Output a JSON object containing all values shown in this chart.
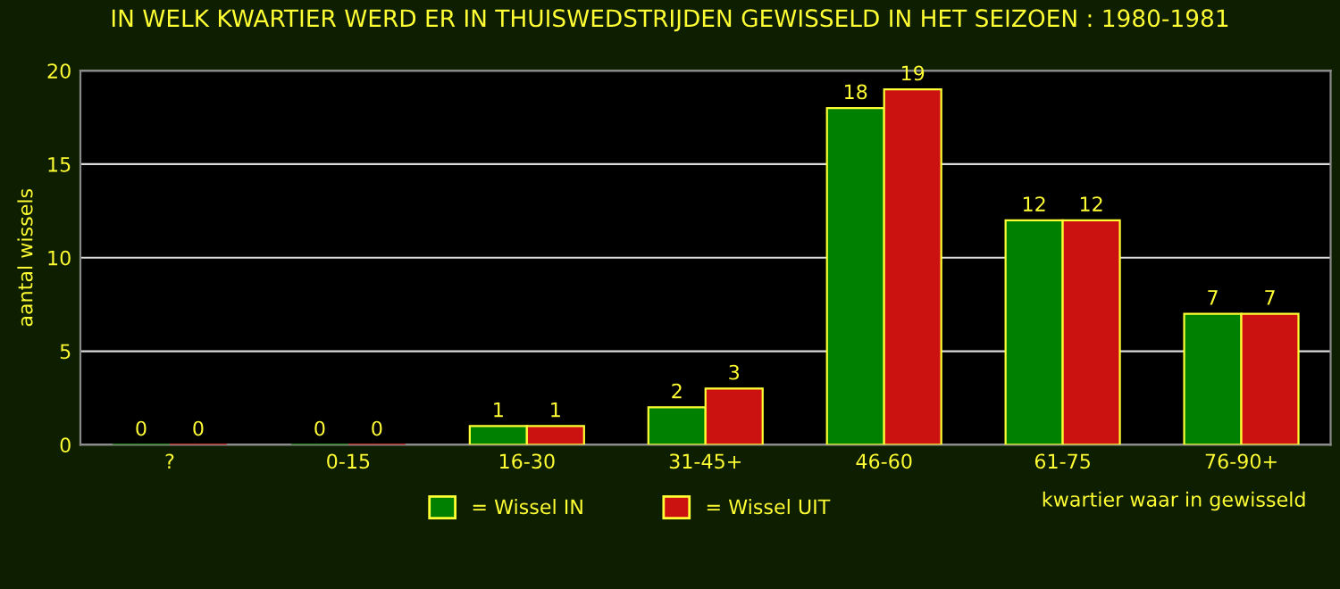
{
  "chart_data": {
    "type": "bar",
    "title": "IN WELK KWARTIER WERD ER IN THUISWEDSTRIJDEN GEWISSELD IN HET SEIZOEN : 1980-1981",
    "xlabel": "kwartier waar in gewisseld",
    "ylabel": "aantal wissels",
    "categories": [
      "?",
      "0-15",
      "16-30",
      "31-45+",
      "46-60",
      "61-75",
      "76-90+"
    ],
    "series": [
      {
        "name": "= Wissel IN",
        "color": "#008000",
        "values": [
          0,
          0,
          1,
          2,
          18,
          12,
          7
        ]
      },
      {
        "name": "= Wissel UIT",
        "color": "#cc1111",
        "values": [
          0,
          0,
          1,
          3,
          19,
          12,
          7
        ]
      }
    ],
    "ylim": [
      0,
      20
    ],
    "yticks": [
      0,
      5,
      10,
      15,
      20
    ],
    "grid": "y",
    "legend": "bottom",
    "data_labels": true
  }
}
